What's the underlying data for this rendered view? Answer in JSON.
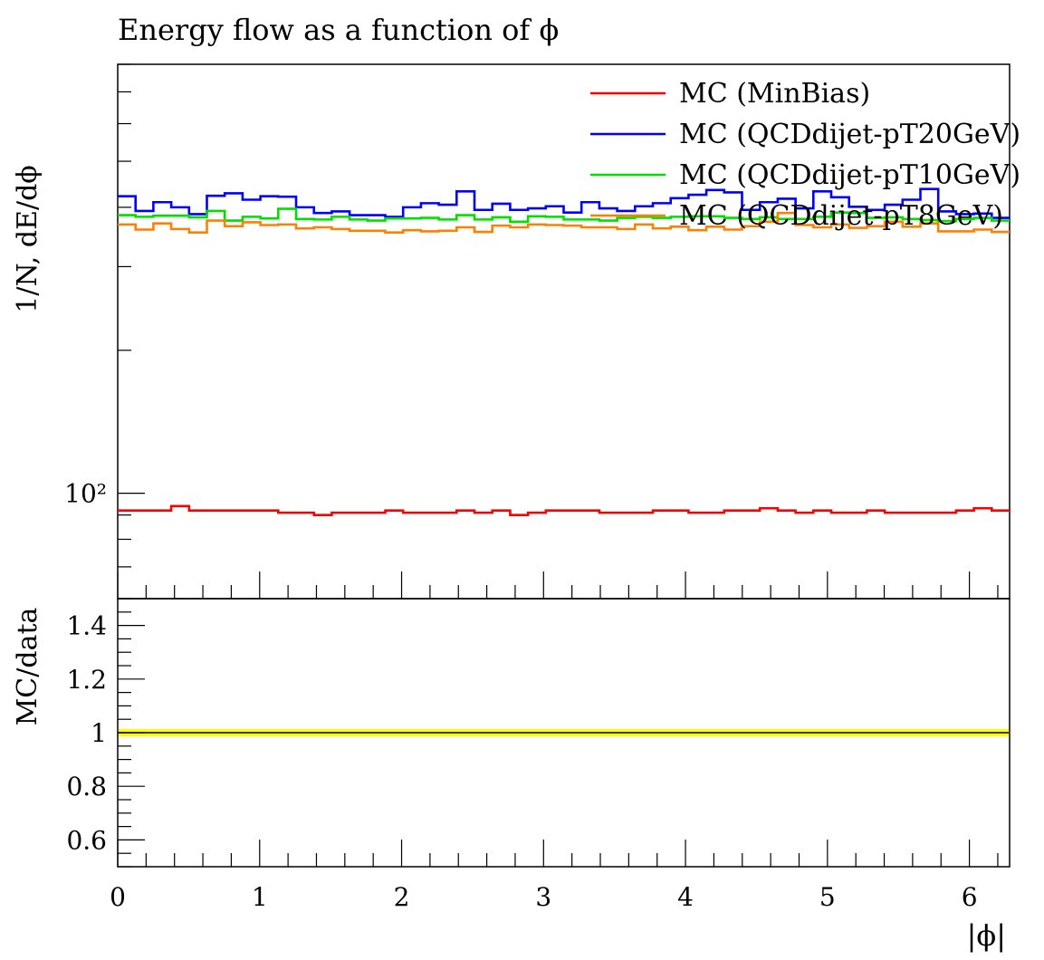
{
  "chart_data": {
    "type": "line",
    "title": "Energy flow as a function of ϕ",
    "ylabel_main": "1/N, dE/dϕ",
    "ylabel_ratio": "MC/data",
    "xlabel": "|ϕ|",
    "xlim": [
      0,
      6.2832
    ],
    "ylim_main": [
      60,
      800
    ],
    "yscale_main": "log",
    "ylim_ratio": [
      0.5,
      1.5
    ],
    "legend_position": "top-right",
    "x_ticks": [
      "0",
      "1",
      "2",
      "3",
      "4",
      "5",
      "6"
    ],
    "y_main_ticks": [
      "10²"
    ],
    "y_ratio_ticks": [
      "0.6",
      "0.8",
      "1",
      "1.2",
      "1.4"
    ],
    "ratio_band": {
      "y": 1.0,
      "color": "#ffff00"
    },
    "bins": 50,
    "series": [
      {
        "name": "MC (MinBias)",
        "color": "#ff0000",
        "values": [
          92,
          92,
          92,
          94,
          92,
          92,
          92,
          92,
          92,
          91,
          91,
          90,
          91,
          91,
          91,
          92,
          91,
          91,
          91,
          92,
          91,
          92,
          90,
          91,
          92,
          92,
          92,
          91,
          91,
          91,
          92,
          92,
          91,
          91,
          92,
          92,
          93,
          92,
          91,
          92,
          91,
          91,
          92,
          91,
          91,
          91,
          91,
          92,
          93,
          92
        ]
      },
      {
        "name": "MC (QCDdijet-pT20GeV)",
        "color": "#0000ff",
        "values": [
          422,
          393,
          410,
          400,
          387,
          423,
          428,
          415,
          422,
          421,
          400,
          389,
          392,
          385,
          385,
          382,
          400,
          408,
          405,
          432,
          395,
          407,
          395,
          398,
          402,
          390,
          410,
          398,
          393,
          402,
          408,
          418,
          425,
          435,
          430,
          395,
          410,
          417,
          398,
          432,
          420,
          401,
          395,
          405,
          415,
          437,
          392,
          387,
          388,
          380
        ]
      },
      {
        "name": "MC (QCDdijet-pT10GeV)",
        "color": "#00e000",
        "values": [
          385,
          382,
          384,
          384,
          381,
          393,
          375,
          382,
          379,
          397,
          378,
          377,
          382,
          377,
          375,
          379,
          379,
          380,
          377,
          385,
          377,
          381,
          373,
          383,
          382,
          377,
          377,
          375,
          380,
          382,
          380,
          382,
          383,
          383,
          380,
          378,
          381,
          378,
          378,
          382,
          390,
          389,
          380,
          381,
          378,
          376,
          374,
          378,
          380,
          375
        ]
      },
      {
        "name": "MC (QCDdijet-pT8GeV)",
        "color": "#ff8000",
        "values": [
          368,
          359,
          370,
          360,
          354,
          375,
          365,
          372,
          367,
          368,
          361,
          363,
          360,
          357,
          357,
          354,
          358,
          356,
          357,
          363,
          355,
          366,
          363,
          368,
          367,
          366,
          363,
          363,
          360,
          368,
          361,
          364,
          358,
          364,
          359,
          365,
          373,
          389,
          367,
          363,
          368,
          362,
          365,
          373,
          364,
          370,
          356,
          356,
          359,
          355
        ]
      }
    ]
  }
}
